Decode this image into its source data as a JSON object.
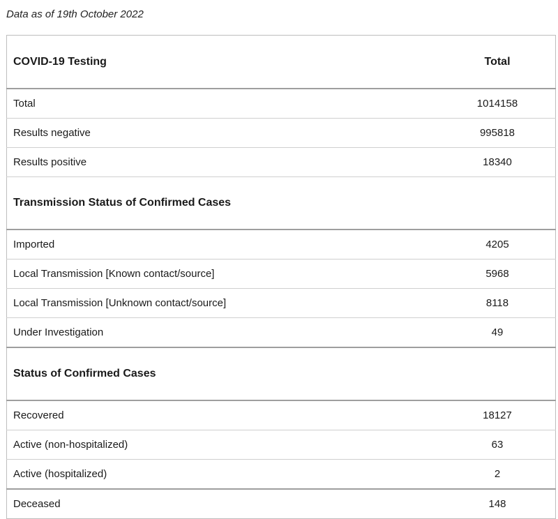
{
  "note": "Data as of 19th October 2022",
  "header": {
    "label": "COVID-19 Testing",
    "value_header": "Total"
  },
  "testing_rows": [
    {
      "label": "Total",
      "value": "1014158"
    },
    {
      "label": "Results negative",
      "value": "995818"
    },
    {
      "label": "Results positive",
      "value": "18340"
    }
  ],
  "transmission_section": "Transmission Status of Confirmed Cases",
  "transmission_rows": [
    {
      "label": "Imported",
      "value": "4205"
    },
    {
      "label": "Local Transmission [Known contact/source]",
      "value": "5968"
    },
    {
      "label": "Local Transmission [Unknown contact/source]",
      "value": "8118"
    },
    {
      "label": "Under Investigation",
      "value": "49"
    }
  ],
  "status_section": "Status of Confirmed Cases",
  "status_rows": [
    {
      "label": "Recovered",
      "value": "18127"
    },
    {
      "label": "Active (non-hospitalized)",
      "value": "63"
    },
    {
      "label": "Active (hospitalized)",
      "value": "2"
    },
    {
      "label": "Deceased",
      "value": "148"
    }
  ]
}
